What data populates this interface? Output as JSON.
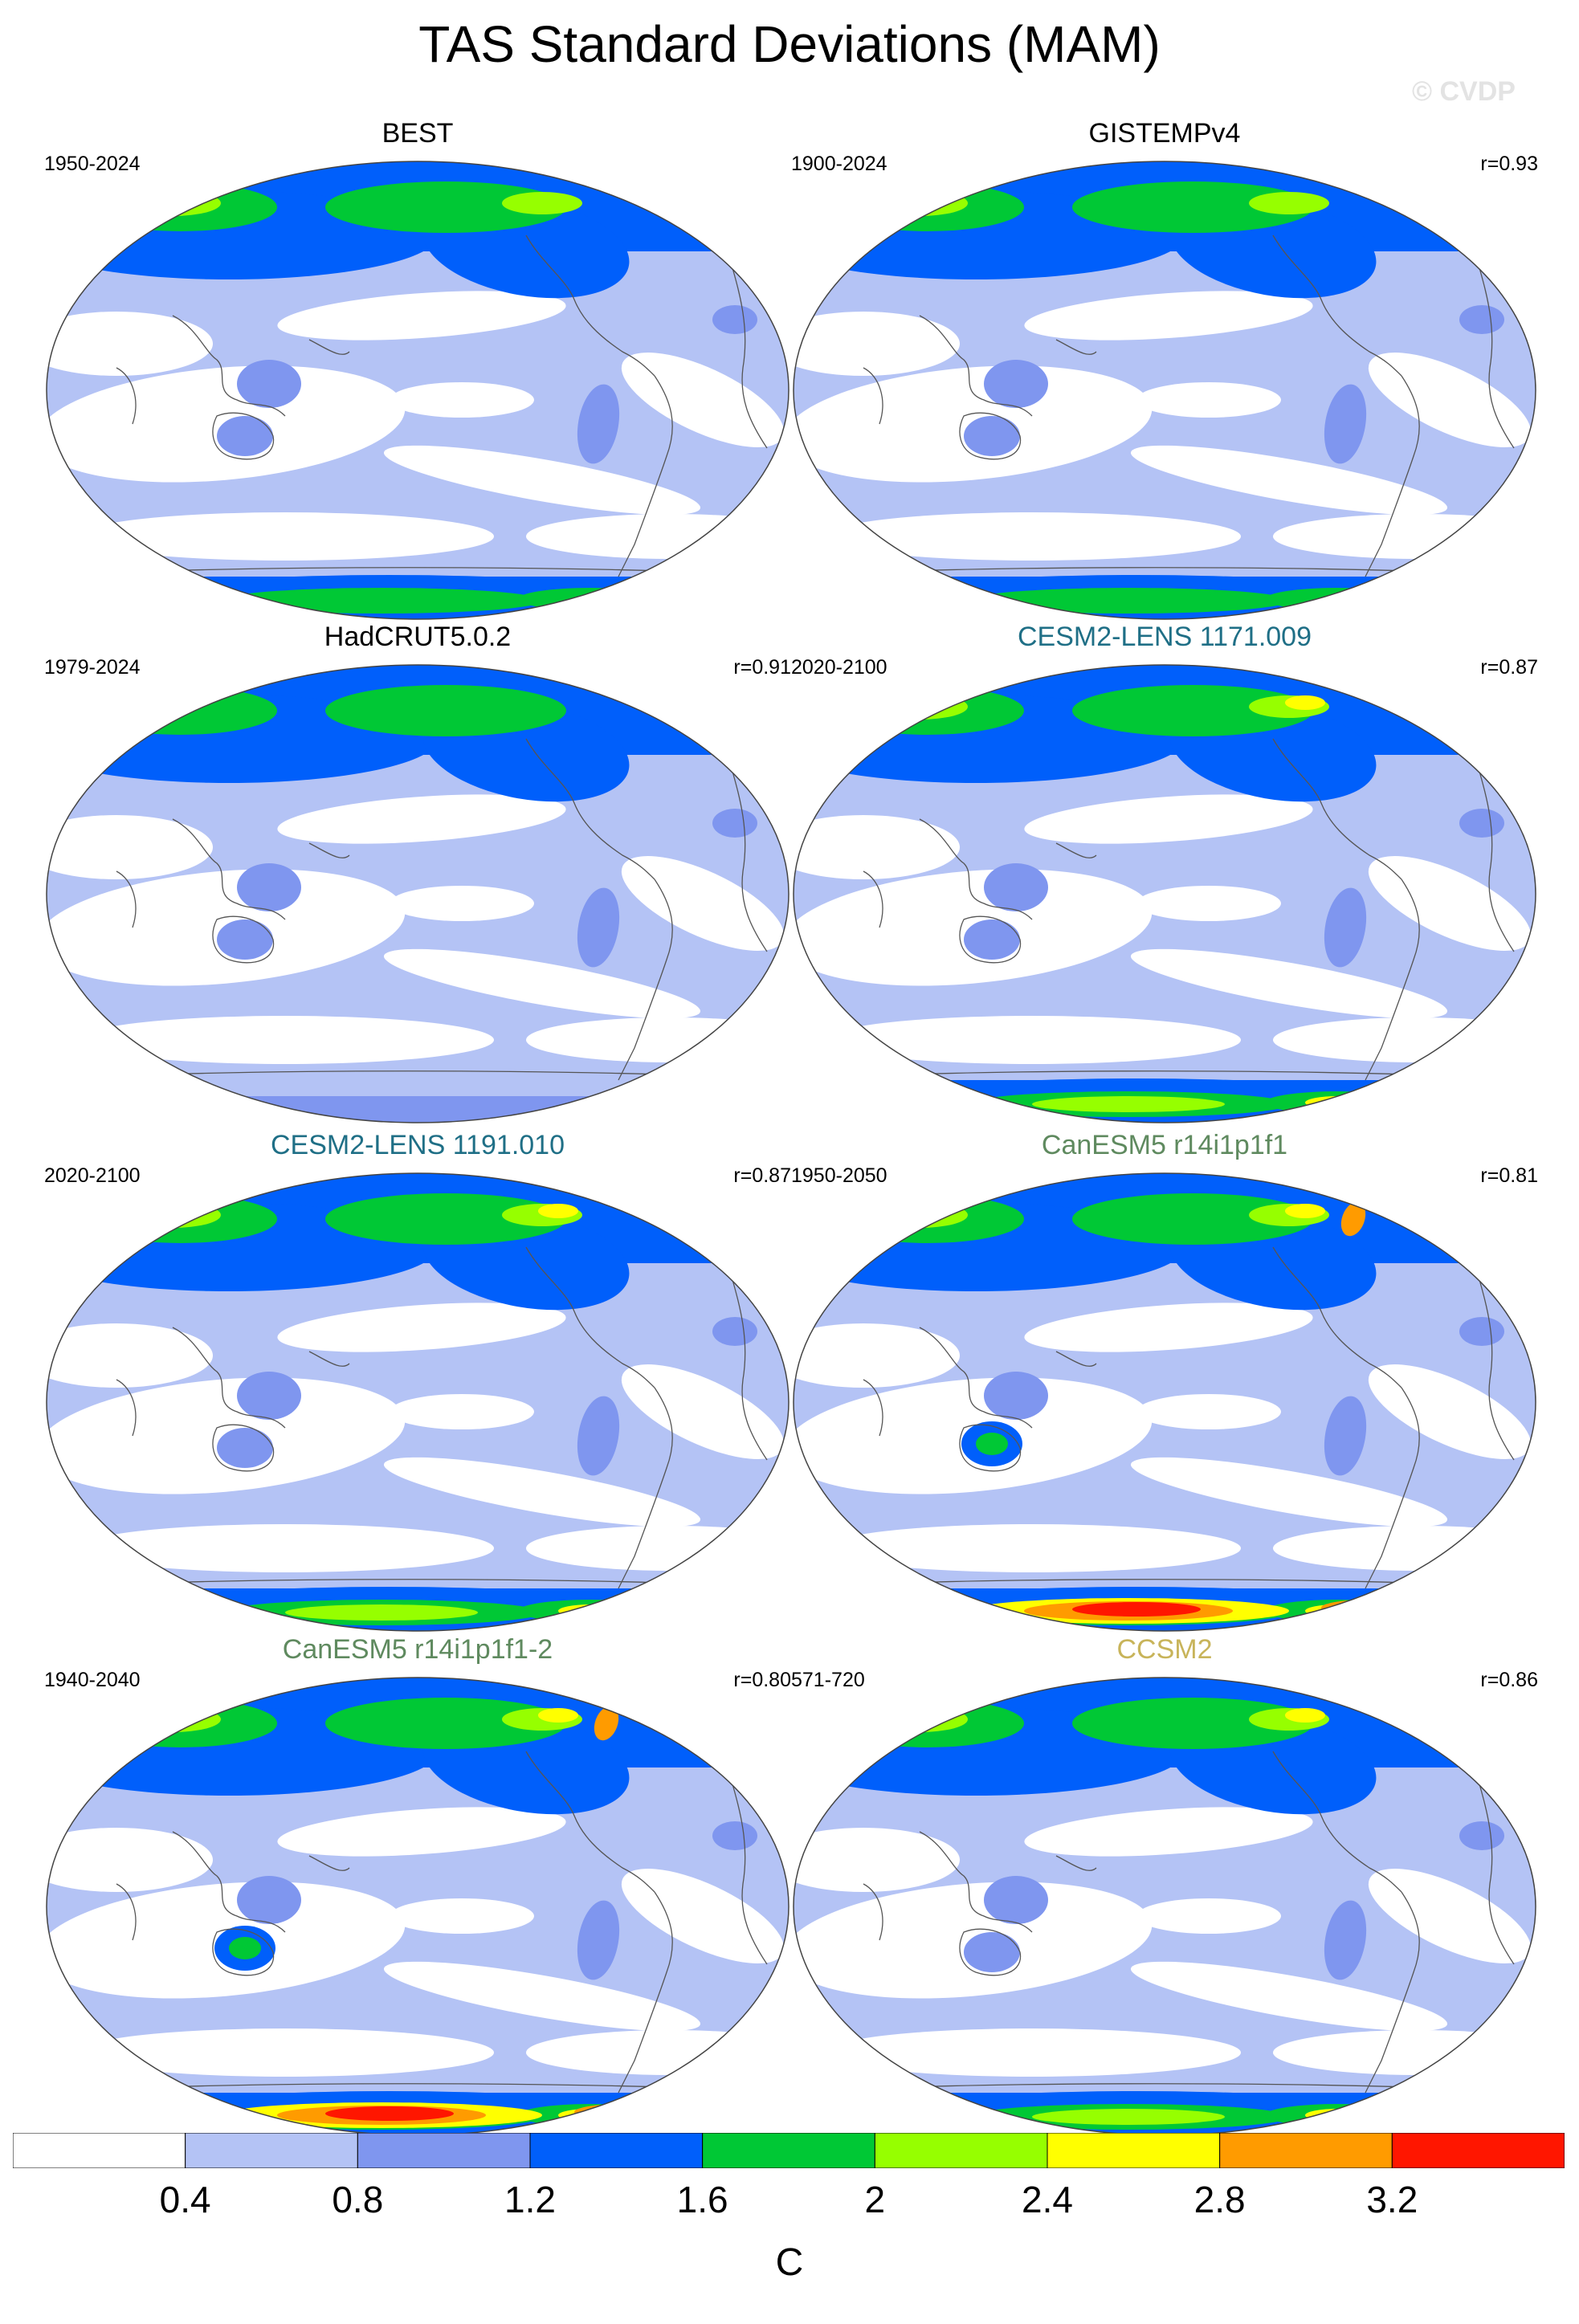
{
  "title": "TAS Standard Deviations (MAM)",
  "watermark": "© CVDP",
  "panels": [
    {
      "name": "BEST",
      "years": "1950-2024",
      "r": "",
      "title_color": "#000000",
      "variant": 0
    },
    {
      "name": "GISTEMPv4",
      "years": "1900-2024",
      "r": "r=0.93",
      "title_color": "#000000",
      "variant": 1
    },
    {
      "name": "HadCRUT5.0.2",
      "years": "1979-2024",
      "r": "r=0.91",
      "title_color": "#000000",
      "variant": 2
    },
    {
      "name": "CESM2-LENS 1171.009",
      "years": "2020-2100",
      "r": "r=0.87",
      "title_color": "#1f6f86",
      "variant": 3
    },
    {
      "name": "CESM2-LENS 1191.010",
      "years": "2020-2100",
      "r": "r=0.87",
      "title_color": "#1f6f86",
      "variant": 4
    },
    {
      "name": "CanESM5 r14i1p1f1",
      "years": "1950-2050",
      "r": "r=0.81",
      "title_color": "#5f8a5f",
      "variant": 5
    },
    {
      "name": "CanESM5 r14i1p1f1-2",
      "years": "1940-2040",
      "r": "r=0.80",
      "title_color": "#5f8a5f",
      "variant": 6
    },
    {
      "name": "CCSM2",
      "years": "571-720",
      "r": "r=0.86",
      "title_color": "#c8b45a",
      "variant": 7
    }
  ],
  "colorbar": {
    "units": "C",
    "levels": [
      "0.4",
      "0.8",
      "1.2",
      "1.6",
      "2",
      "2.4",
      "2.8",
      "3.2"
    ],
    "colors": [
      "#ffffff",
      "#b4c3f5",
      "#7f96ef",
      "#005ffb",
      "#00c835",
      "#96ff00",
      "#ffff00",
      "#ff9b00",
      "#ff1600"
    ]
  }
}
